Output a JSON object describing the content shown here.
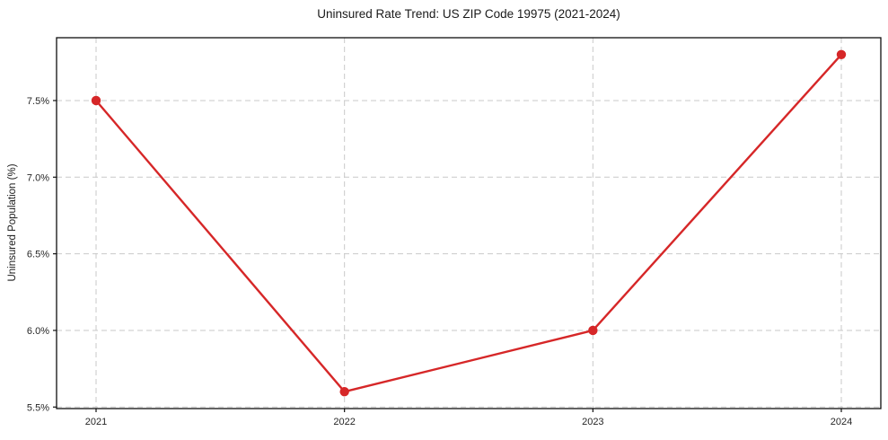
{
  "page": {
    "background": "#ffffff"
  },
  "chart_data": {
    "type": "line",
    "title": "Uninsured Rate Trend: US ZIP Code 19975 (2021-2024)",
    "xlabel": "",
    "ylabel": "Uninsured Population (%)",
    "categories": [
      "2021",
      "2022",
      "2023",
      "2024"
    ],
    "series": [
      {
        "name": "Uninsured Population (%)",
        "values": [
          7.5,
          5.6,
          6.0,
          7.8
        ]
      }
    ],
    "value_format": "percent",
    "ylim": [
      5.49,
      7.91
    ],
    "yticks": [
      {
        "value": 5.5,
        "label": "5.5%"
      },
      {
        "value": 6.0,
        "label": "6.0%"
      },
      {
        "value": 6.5,
        "label": "6.5%"
      },
      {
        "value": 7.0,
        "label": "7.0%"
      },
      {
        "value": 7.5,
        "label": "7.5%"
      }
    ],
    "grid": true,
    "grid_style": "dashed",
    "legend": "none",
    "marker": "circle",
    "colors": {
      "line": "#d62728",
      "marker": "#d62728",
      "grid": "#c9c9c9",
      "spine": "#0f0f0f",
      "text": "#262626"
    }
  }
}
